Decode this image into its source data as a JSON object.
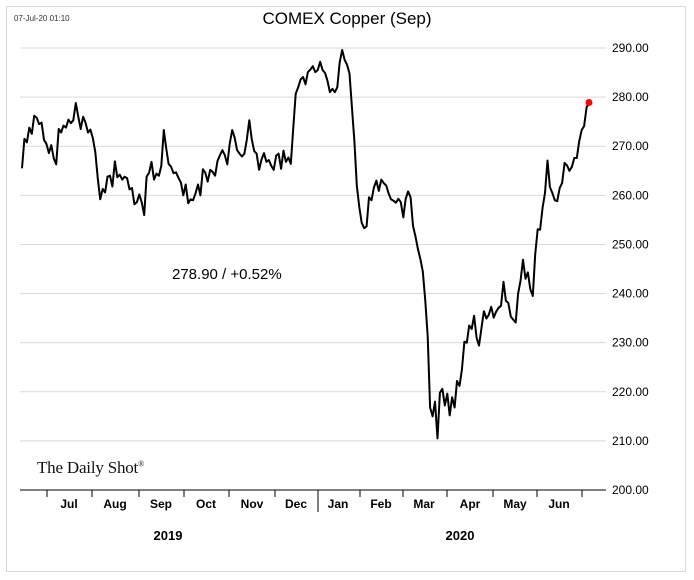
{
  "stamp": "07-Jul-20 01:10",
  "annotation": "278.90  /  +0.52%",
  "brand": {
    "name": "The Daily Shot",
    "mark": "®"
  },
  "colors": {
    "line": "#000000",
    "last_point": "#ff0000",
    "grid": "#d9d9d9"
  },
  "chart_data": {
    "type": "line",
    "title": "COMEX Copper (Sep)",
    "xlabel": "",
    "ylabel": "",
    "ylim": [
      200,
      290
    ],
    "y_ticks": [
      "290.00",
      "280.00",
      "270.00",
      "260.00",
      "250.00",
      "240.00",
      "230.00",
      "220.00",
      "210.00",
      "200.00"
    ],
    "month_labels": [
      "Jul",
      "Aug",
      "Sep",
      "Oct",
      "Nov",
      "Dec",
      "Jan",
      "Feb",
      "Mar",
      "Apr",
      "May",
      "Jun"
    ],
    "year_labels": [
      "2019",
      "2020"
    ],
    "grid": true,
    "x_period": "2019-06 to 2020-07",
    "series": [
      {
        "values": [
          265.5,
          271.5,
          270.8,
          273.8,
          272.5,
          276.2,
          275.8,
          274.5,
          274.8,
          271.3,
          270.5,
          268.6,
          270.2,
          267.5,
          266.3,
          273.5,
          272.8,
          274.2,
          273.8,
          275.4,
          274.7,
          275.3,
          278.8,
          276.1,
          273.5,
          276.0,
          274.8,
          272.8,
          273.4,
          271.6,
          268.8,
          263.4,
          259.2,
          261.3,
          260.6,
          263.8,
          264.0,
          261.8,
          266.9,
          263.7,
          264.2,
          263.2,
          263.8,
          263.5,
          261.2,
          261.5,
          258.2,
          258.6,
          260.2,
          258.5,
          256.0,
          263.8,
          264.6,
          266.8,
          263.2,
          264.4,
          264.0,
          266.0,
          273.3,
          269.6,
          266.4,
          265.8,
          264.5,
          264.7,
          263.6,
          262.6,
          260.0,
          262.2,
          258.4,
          259.2,
          259.0,
          260.4,
          262.2,
          260.0,
          265.3,
          264.6,
          262.8,
          265.2,
          264.8,
          264.0,
          267.0,
          268.2,
          269.2,
          268.2,
          266.3,
          270.5,
          273.3,
          271.8,
          269.2,
          268.5,
          267.9,
          268.5,
          271.3,
          275.3,
          271.5,
          269.0,
          268.5,
          265.2,
          267.3,
          268.6,
          266.8,
          267.2,
          266.0,
          265.2,
          268.1,
          268.5,
          265.4,
          269.1,
          266.8,
          267.7,
          266.4,
          273.8,
          280.7,
          282.0,
          283.6,
          284.1,
          282.6,
          285.1,
          285.6,
          286.3,
          285.1,
          285.5,
          287.2,
          285.5,
          284.9,
          283.3,
          281.0,
          281.7,
          281.0,
          282.0,
          287.1,
          289.6,
          287.6,
          286.6,
          284.8,
          278.0,
          271.0,
          262.0,
          257.6,
          254.4,
          253.3,
          253.7,
          259.6,
          259.0,
          261.6,
          263.0,
          260.9,
          263.2,
          262.5,
          262.0,
          260.4,
          259.2,
          258.9,
          258.5,
          259.3,
          258.6,
          255.5,
          259.3,
          260.8,
          259.6,
          253.8,
          251.6,
          249.1,
          247.0,
          244.5,
          238.5,
          231.3,
          216.8,
          215.0,
          218.0,
          210.5,
          219.8,
          220.6,
          217.2,
          219.6,
          215.2,
          218.9,
          216.8,
          222.2,
          221.2,
          224.5,
          230.2,
          230.0,
          233.5,
          232.8,
          235.5,
          231.0,
          229.4,
          233.0,
          236.4,
          234.9,
          235.7,
          237.3,
          235.1,
          236.3,
          237.1,
          237.5,
          242.4,
          238.5,
          238.1,
          235.3,
          234.7,
          234.1,
          240.0,
          242.7,
          246.9,
          243.0,
          244.3,
          240.9,
          239.5,
          248.0,
          253.1,
          253.0,
          257.5,
          260.5,
          267.1,
          261.7,
          260.5,
          259.0,
          258.8,
          261.5,
          262.5,
          266.6,
          266.1,
          265.0,
          265.8,
          267.6,
          267.6,
          271.0,
          273.3,
          274.1,
          277.9,
          278.9
        ]
      }
    ]
  }
}
